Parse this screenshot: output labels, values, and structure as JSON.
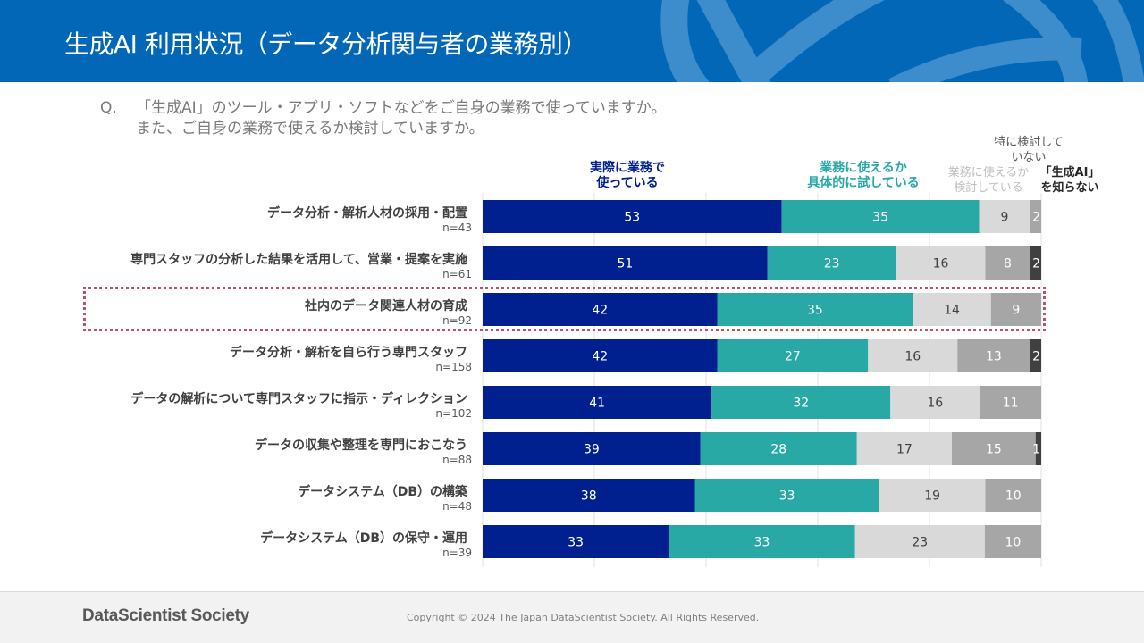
{
  "header": {
    "title": "生成AI 利用状況（データ分析関与者の業務別）"
  },
  "question": {
    "mark": "Q.",
    "line1": "「生成AI」のツール・アプリ・ソフトなどをご自身の業務で使っていますか。",
    "line2": "また、ご自身の業務で使えるか検討していますか。"
  },
  "footer": {
    "logo": "DataScientist Society",
    "copyright": "Copyright © 2024  The Japan DataScientist Society. All Rights Reserved."
  },
  "colors": {
    "header_bg": "#0367b8",
    "header_deco": "#3d8ccc",
    "highlight": "#c0506a"
  },
  "chart_data": {
    "type": "bar",
    "orientation": "horizontal-stacked-100",
    "title": "生成AI 利用状況（データ分析関与者の業務別）",
    "xlabel": "",
    "ylabel": "",
    "xlim": [
      0,
      100
    ],
    "grid": true,
    "legend_position": "top",
    "legend": [
      {
        "key": "using",
        "lines": [
          "実際に業務で",
          "使っている"
        ],
        "color": "#00208f",
        "text_color": "#00208f",
        "label_color": "#ffffff"
      },
      {
        "key": "trying",
        "lines": [
          "業務に使えるか",
          "具体的に試している"
        ],
        "color": "#28a9a6",
        "text_color": "#28a9a6",
        "label_color": "#ffffff"
      },
      {
        "key": "considering",
        "lines": [
          "業務に使えるか",
          "検討している"
        ],
        "color": "#d9d9d9",
        "text_color": "#bfbfbf",
        "label_color": "#404040"
      },
      {
        "key": "not_considering",
        "lines": [
          "特に検討して",
          "いない"
        ],
        "color": "#a6a6a6",
        "text_color": "#595959",
        "label_color": "#ffffff"
      },
      {
        "key": "unaware",
        "lines": [
          "「生成AI」",
          "を知らない"
        ],
        "color": "#404040",
        "text_color": "#262626",
        "label_color": "#ffffff"
      }
    ],
    "categories": [
      {
        "label": "データ分析・解析人材の採用・配置",
        "n": "n=43",
        "highlighted": false
      },
      {
        "label": "専門スタッフの分析した結果を活用して、営業・提案を実施",
        "n": "n=61",
        "highlighted": false
      },
      {
        "label": "社内のデータ関連人材の育成",
        "n": "n=92",
        "highlighted": true
      },
      {
        "label": "データ分析・解析を自ら行う専門スタッフ",
        "n": "n=158",
        "highlighted": false
      },
      {
        "label": "データの解析について専門スタッフに指示・ディレクション",
        "n": "n=102",
        "highlighted": false
      },
      {
        "label": "データの収集や整理を専門におこなう",
        "n": "n=88",
        "highlighted": false
      },
      {
        "label": "データシステム（DB）の構築",
        "n": "n=48",
        "highlighted": false
      },
      {
        "label": "データシステム（DB）の保守・運用",
        "n": "n=39",
        "highlighted": false
      }
    ],
    "series": [
      {
        "name": "実際に業務で使っている",
        "values": [
          53,
          51,
          42,
          42,
          41,
          39,
          38,
          33
        ]
      },
      {
        "name": "業務に使えるか具体的に試している",
        "values": [
          35,
          23,
          35,
          27,
          32,
          28,
          33,
          33
        ]
      },
      {
        "name": "業務に使えるか検討している",
        "values": [
          9,
          16,
          14,
          16,
          16,
          17,
          19,
          23
        ]
      },
      {
        "name": "特に検討していない",
        "values": [
          2,
          8,
          9,
          13,
          11,
          15,
          10,
          10
        ]
      },
      {
        "name": "「生成AI」を知らない",
        "values": [
          0,
          2,
          0,
          2,
          0,
          1,
          0,
          0
        ]
      }
    ]
  }
}
